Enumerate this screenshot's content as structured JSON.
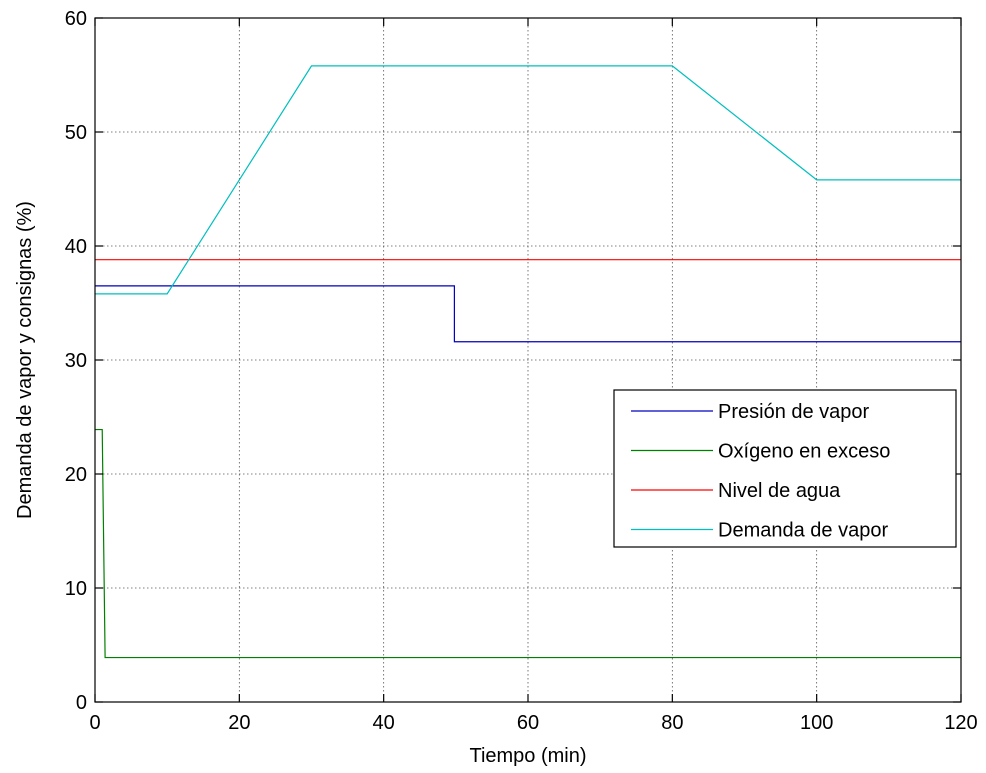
{
  "chart_data": {
    "type": "line",
    "title": "",
    "xlabel": "Tiempo (min)",
    "ylabel": "Demanda de vapor y consignas (%)",
    "xlim": [
      0,
      120
    ],
    "ylim": [
      0,
      60
    ],
    "xticks": [
      0,
      20,
      40,
      60,
      80,
      100,
      120
    ],
    "yticks": [
      0,
      10,
      20,
      30,
      40,
      50,
      60
    ],
    "grid": true,
    "legend_position": "right",
    "series": [
      {
        "name": "Presión de vapor",
        "color": "#0000bf",
        "x": [
          0,
          49.8,
          49.8,
          120
        ],
        "y": [
          36.5,
          36.5,
          31.6,
          31.6
        ]
      },
      {
        "name": "Oxígeno en exceso",
        "color": "#008000",
        "x": [
          0,
          1,
          1.4,
          120
        ],
        "y": [
          23.9,
          23.9,
          3.9,
          3.9
        ]
      },
      {
        "name": "Nivel de agua",
        "color": "#ff0000",
        "x": [
          0,
          120
        ],
        "y": [
          38.8,
          38.8
        ]
      },
      {
        "name": "Demanda de vapor",
        "color": "#00bfbf",
        "x": [
          0,
          10,
          30,
          80,
          100,
          120
        ],
        "y": [
          35.8,
          35.8,
          55.8,
          55.8,
          45.8,
          45.8
        ]
      }
    ]
  }
}
